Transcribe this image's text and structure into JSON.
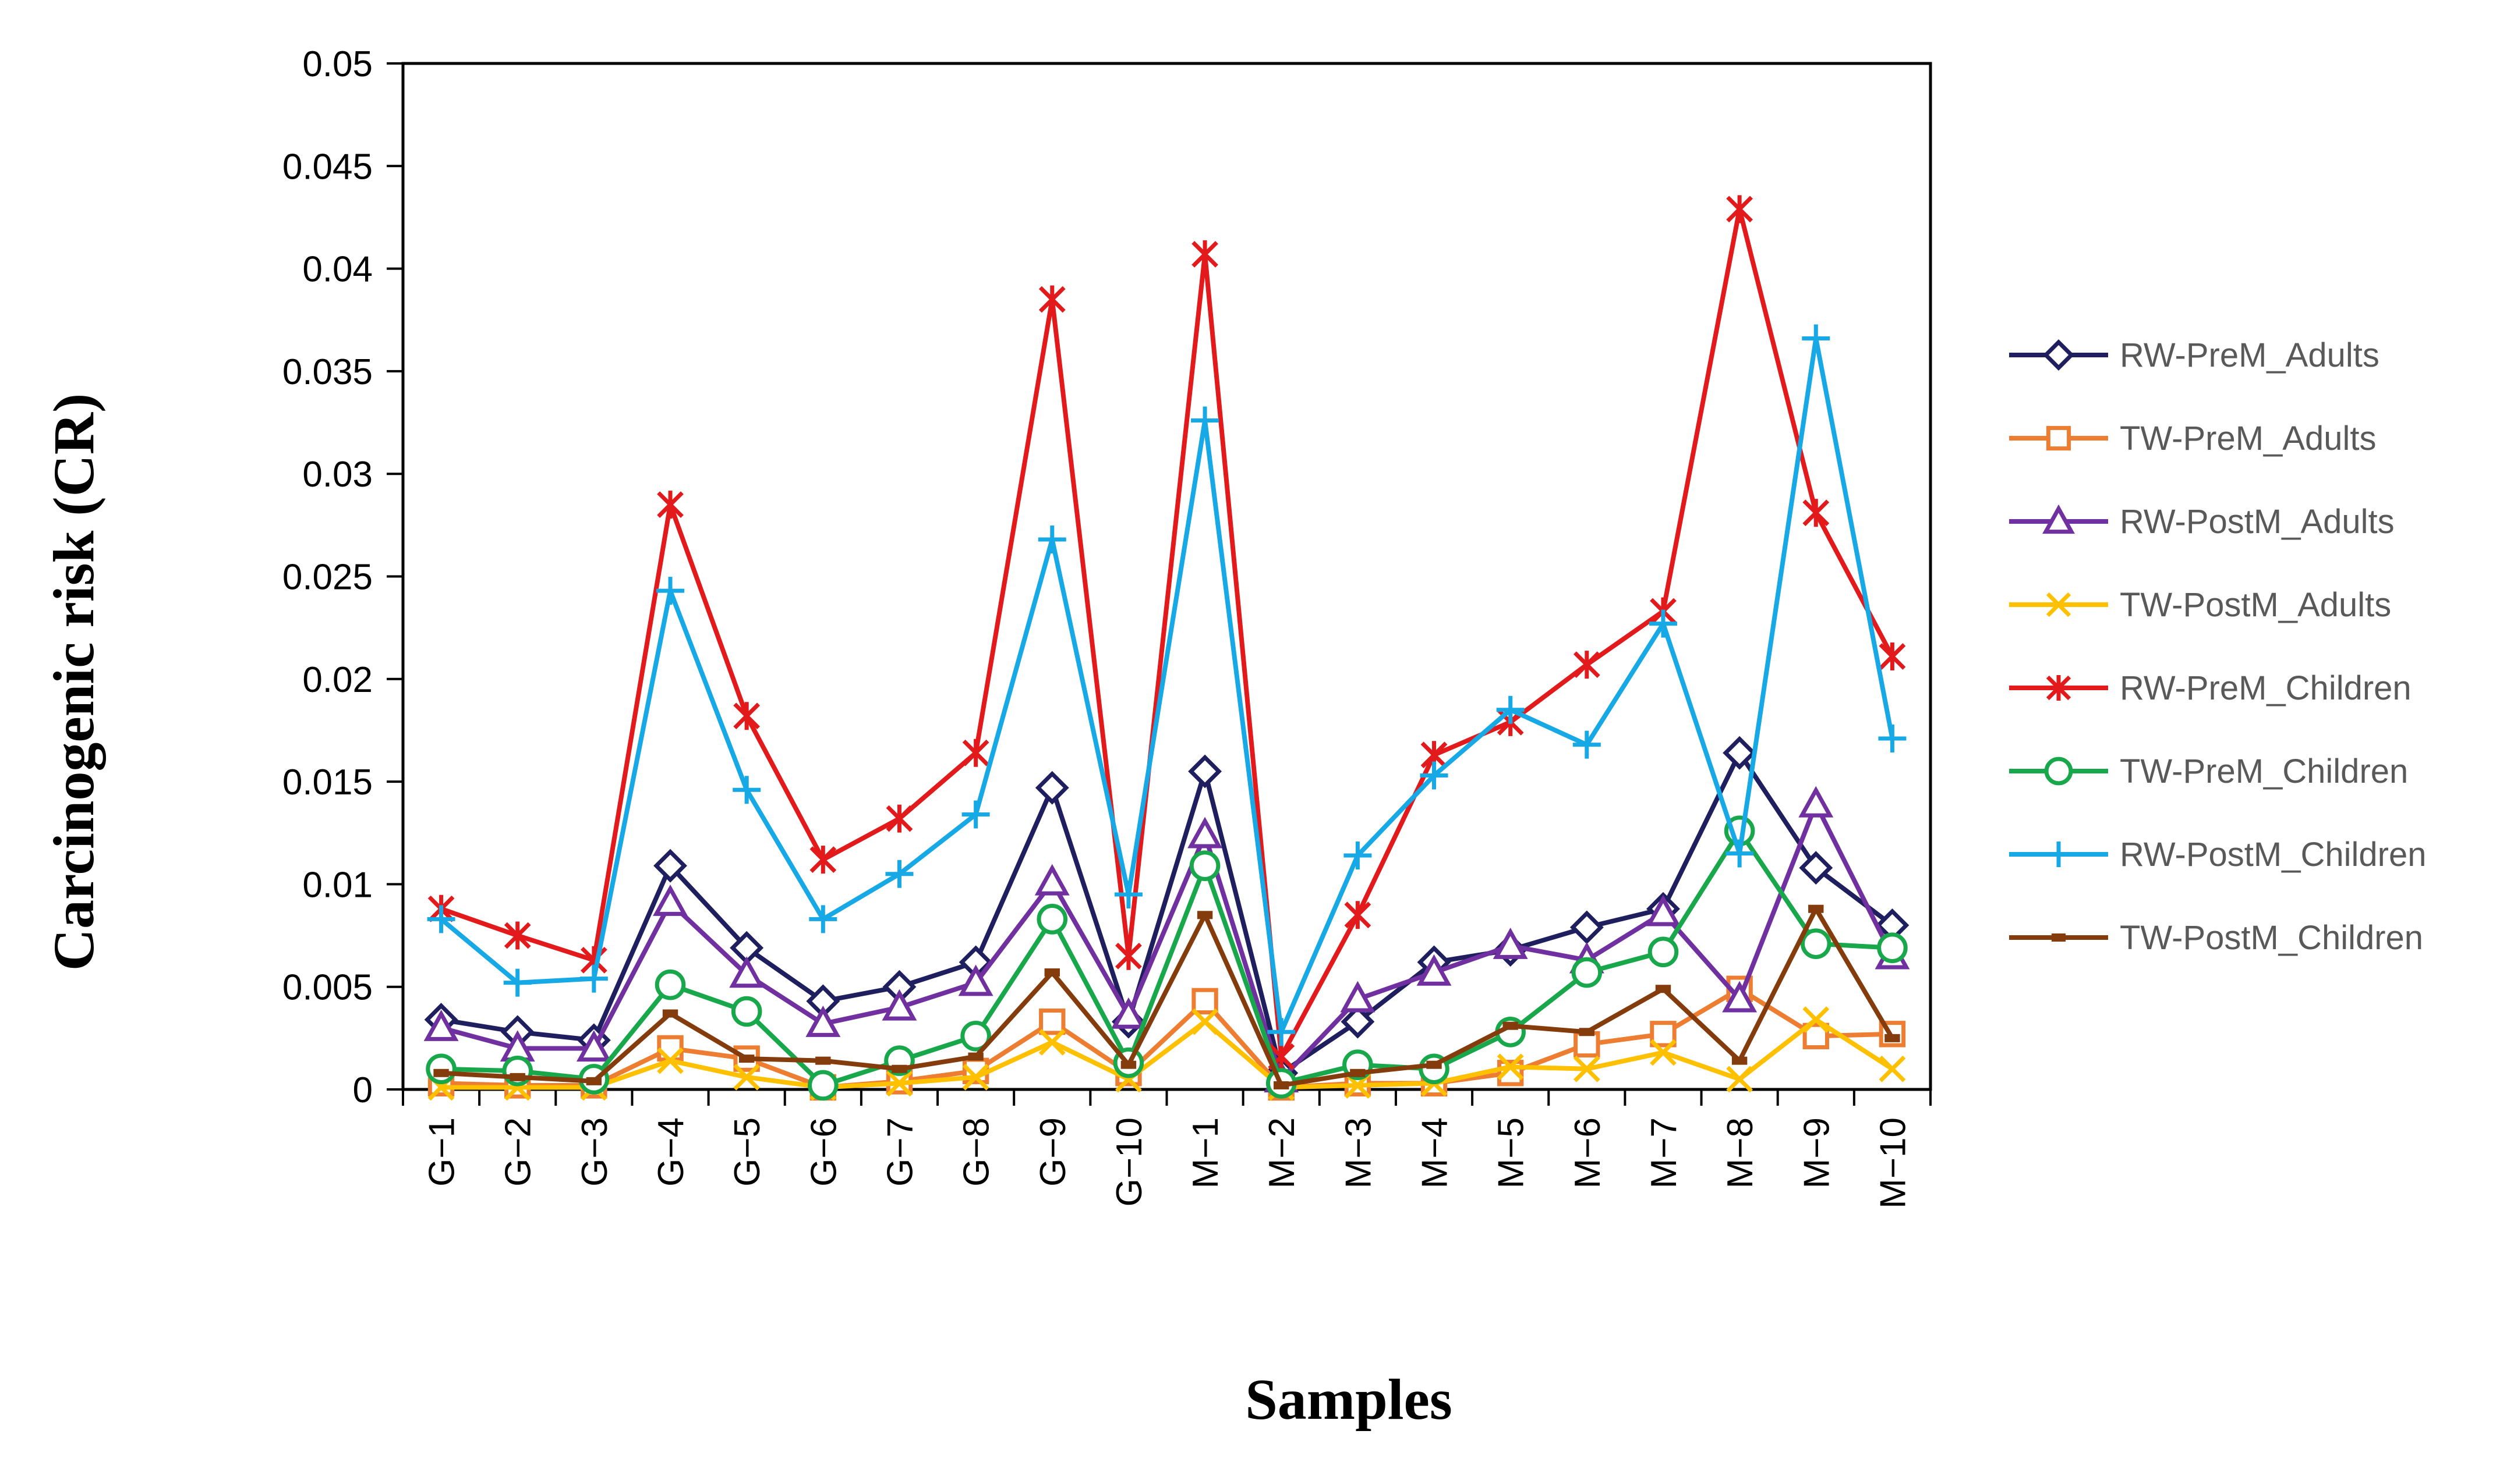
{
  "chart_data": {
    "type": "line",
    "title": "",
    "xlabel": "Samples",
    "ylabel": "Carcinogenic risk (CR)",
    "ylim": [
      0,
      0.05
    ],
    "ytick_labels": [
      "0",
      "0.005",
      "0.01",
      "0.015",
      "0.02",
      "0.025",
      "0.03",
      "0.035",
      "0.04",
      "0.045",
      "0.05"
    ],
    "categories": [
      "G−1",
      "G−2",
      "G−3",
      "G−4",
      "G−5",
      "G−6",
      "G−7",
      "G−8",
      "G−9",
      "G−10",
      "M−1",
      "M−2",
      "M−3",
      "M−4",
      "M−5",
      "M−6",
      "M−7",
      "M−8",
      "M−9",
      "M−10"
    ],
    "legend_position": "right",
    "grid": false,
    "series": [
      {
        "name": "RW-PreM_Adults",
        "color": "#1f1f5f",
        "marker": "diamond",
        "values": [
          0.0034,
          0.0028,
          0.0024,
          0.0109,
          0.0069,
          0.0043,
          0.005,
          0.0062,
          0.0147,
          0.0033,
          0.0155,
          0.0008,
          0.0033,
          0.0062,
          0.0068,
          0.0079,
          0.0088,
          0.0164,
          0.0108,
          0.008
        ]
      },
      {
        "name": "TW-PreM_Adults",
        "color": "#ed7d31",
        "marker": "square",
        "values": [
          0.0003,
          0.0002,
          0.0002,
          0.002,
          0.0015,
          0.0001,
          0.0004,
          0.0009,
          0.0033,
          0.0008,
          0.0043,
          0.0001,
          0.0003,
          0.0003,
          0.0008,
          0.0022,
          0.0027,
          0.0049,
          0.0026,
          0.0027
        ]
      },
      {
        "name": "RW-PostM_Adults",
        "color": "#7030a0",
        "marker": "triangle",
        "values": [
          0.003,
          0.002,
          0.002,
          0.0091,
          0.0056,
          0.0032,
          0.004,
          0.0052,
          0.0101,
          0.0036,
          0.0124,
          0.0005,
          0.0044,
          0.0057,
          0.007,
          0.0063,
          0.0086,
          0.0044,
          0.0139,
          0.0065
        ]
      },
      {
        "name": "TW-PostM_Adults",
        "color": "#ffc000",
        "marker": "x",
        "values": [
          0.0001,
          0.0001,
          0.0001,
          0.0014,
          0.0006,
          0.0001,
          0.0003,
          0.0006,
          0.0023,
          0.0005,
          0.0033,
          0.0001,
          0.0002,
          0.0003,
          0.0011,
          0.001,
          0.0018,
          0.0005,
          0.0034,
          0.001
        ]
      },
      {
        "name": "RW-PreM_Children",
        "color": "#e31a1c",
        "marker": "asterisk",
        "values": [
          0.0088,
          0.0075,
          0.0063,
          0.0285,
          0.0182,
          0.0112,
          0.0132,
          0.0164,
          0.0385,
          0.0065,
          0.0407,
          0.0016,
          0.0085,
          0.0163,
          0.0179,
          0.0207,
          0.0233,
          0.0429,
          0.0281,
          0.0211
        ]
      },
      {
        "name": "TW-PreM_Children",
        "color": "#18a84b",
        "marker": "circle",
        "values": [
          0.001,
          0.0009,
          0.0005,
          0.0051,
          0.0038,
          0.0002,
          0.0014,
          0.0026,
          0.0083,
          0.0013,
          0.0109,
          0.0003,
          0.0012,
          0.001,
          0.0028,
          0.0057,
          0.0067,
          0.0126,
          0.0071,
          0.0069
        ]
      },
      {
        "name": "RW-PostM_Children",
        "color": "#17a8e6",
        "marker": "plus",
        "values": [
          0.0083,
          0.0052,
          0.0054,
          0.0243,
          0.0146,
          0.0083,
          0.0105,
          0.0134,
          0.0268,
          0.0095,
          0.0326,
          0.0028,
          0.0114,
          0.0153,
          0.0185,
          0.0168,
          0.0227,
          0.0115,
          0.0366,
          0.0171
        ]
      },
      {
        "name": "TW-PostM_Children",
        "color": "#843c0c",
        "marker": "dash",
        "values": [
          0.0008,
          0.0006,
          0.0004,
          0.0037,
          0.0015,
          0.0014,
          0.001,
          0.0016,
          0.0057,
          0.0012,
          0.0085,
          0.0002,
          0.0008,
          0.0012,
          0.0031,
          0.0028,
          0.0049,
          0.0014,
          0.0088,
          0.0025
        ]
      }
    ]
  }
}
